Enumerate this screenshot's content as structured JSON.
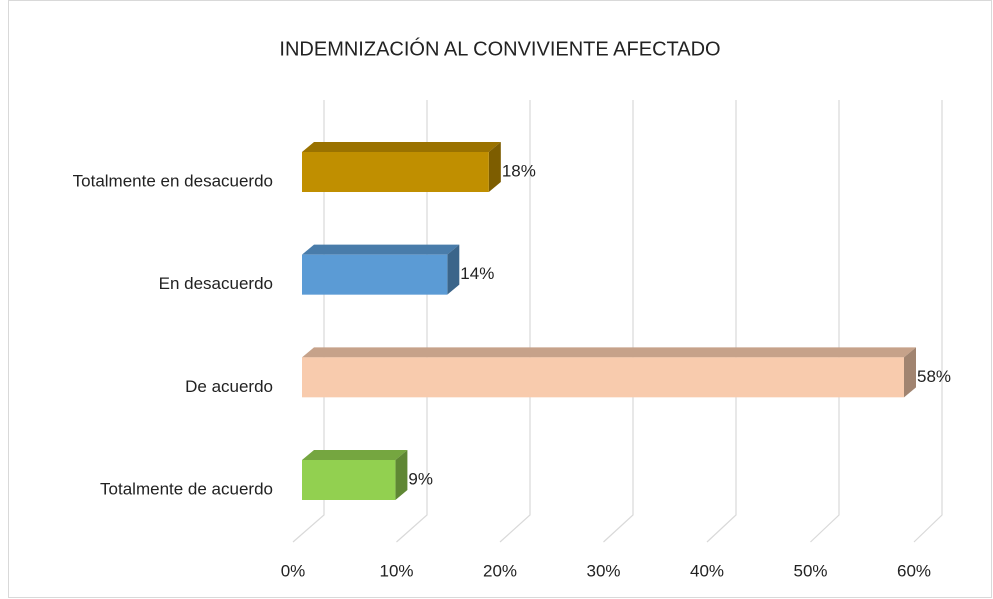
{
  "chart_data": {
    "type": "bar3d_horizontal",
    "title": "INDEMNIZACIÓN AL CONVIVIENTE AFECTADO",
    "categories": [
      "Totalmente en desacuerdo",
      "En desacuerdo",
      "De acuerdo",
      "Totalmente de acuerdo"
    ],
    "values": [
      18,
      14,
      58,
      9
    ],
    "value_labels": [
      "18%",
      "14%",
      "58%",
      "9%"
    ],
    "colors": [
      "#c08f00",
      "#5b9bd5",
      "#f8cbad",
      "#92d050"
    ],
    "xlim": [
      0,
      60
    ],
    "xticks": [
      {
        "value": 0,
        "label": "0%"
      },
      {
        "value": 10,
        "label": "10%"
      },
      {
        "value": 20,
        "label": "20%"
      },
      {
        "value": 30,
        "label": "30%"
      },
      {
        "value": 40,
        "label": "40%"
      },
      {
        "value": 50,
        "label": "50%"
      },
      {
        "value": 60,
        "label": "60%"
      }
    ],
    "grid": true
  }
}
